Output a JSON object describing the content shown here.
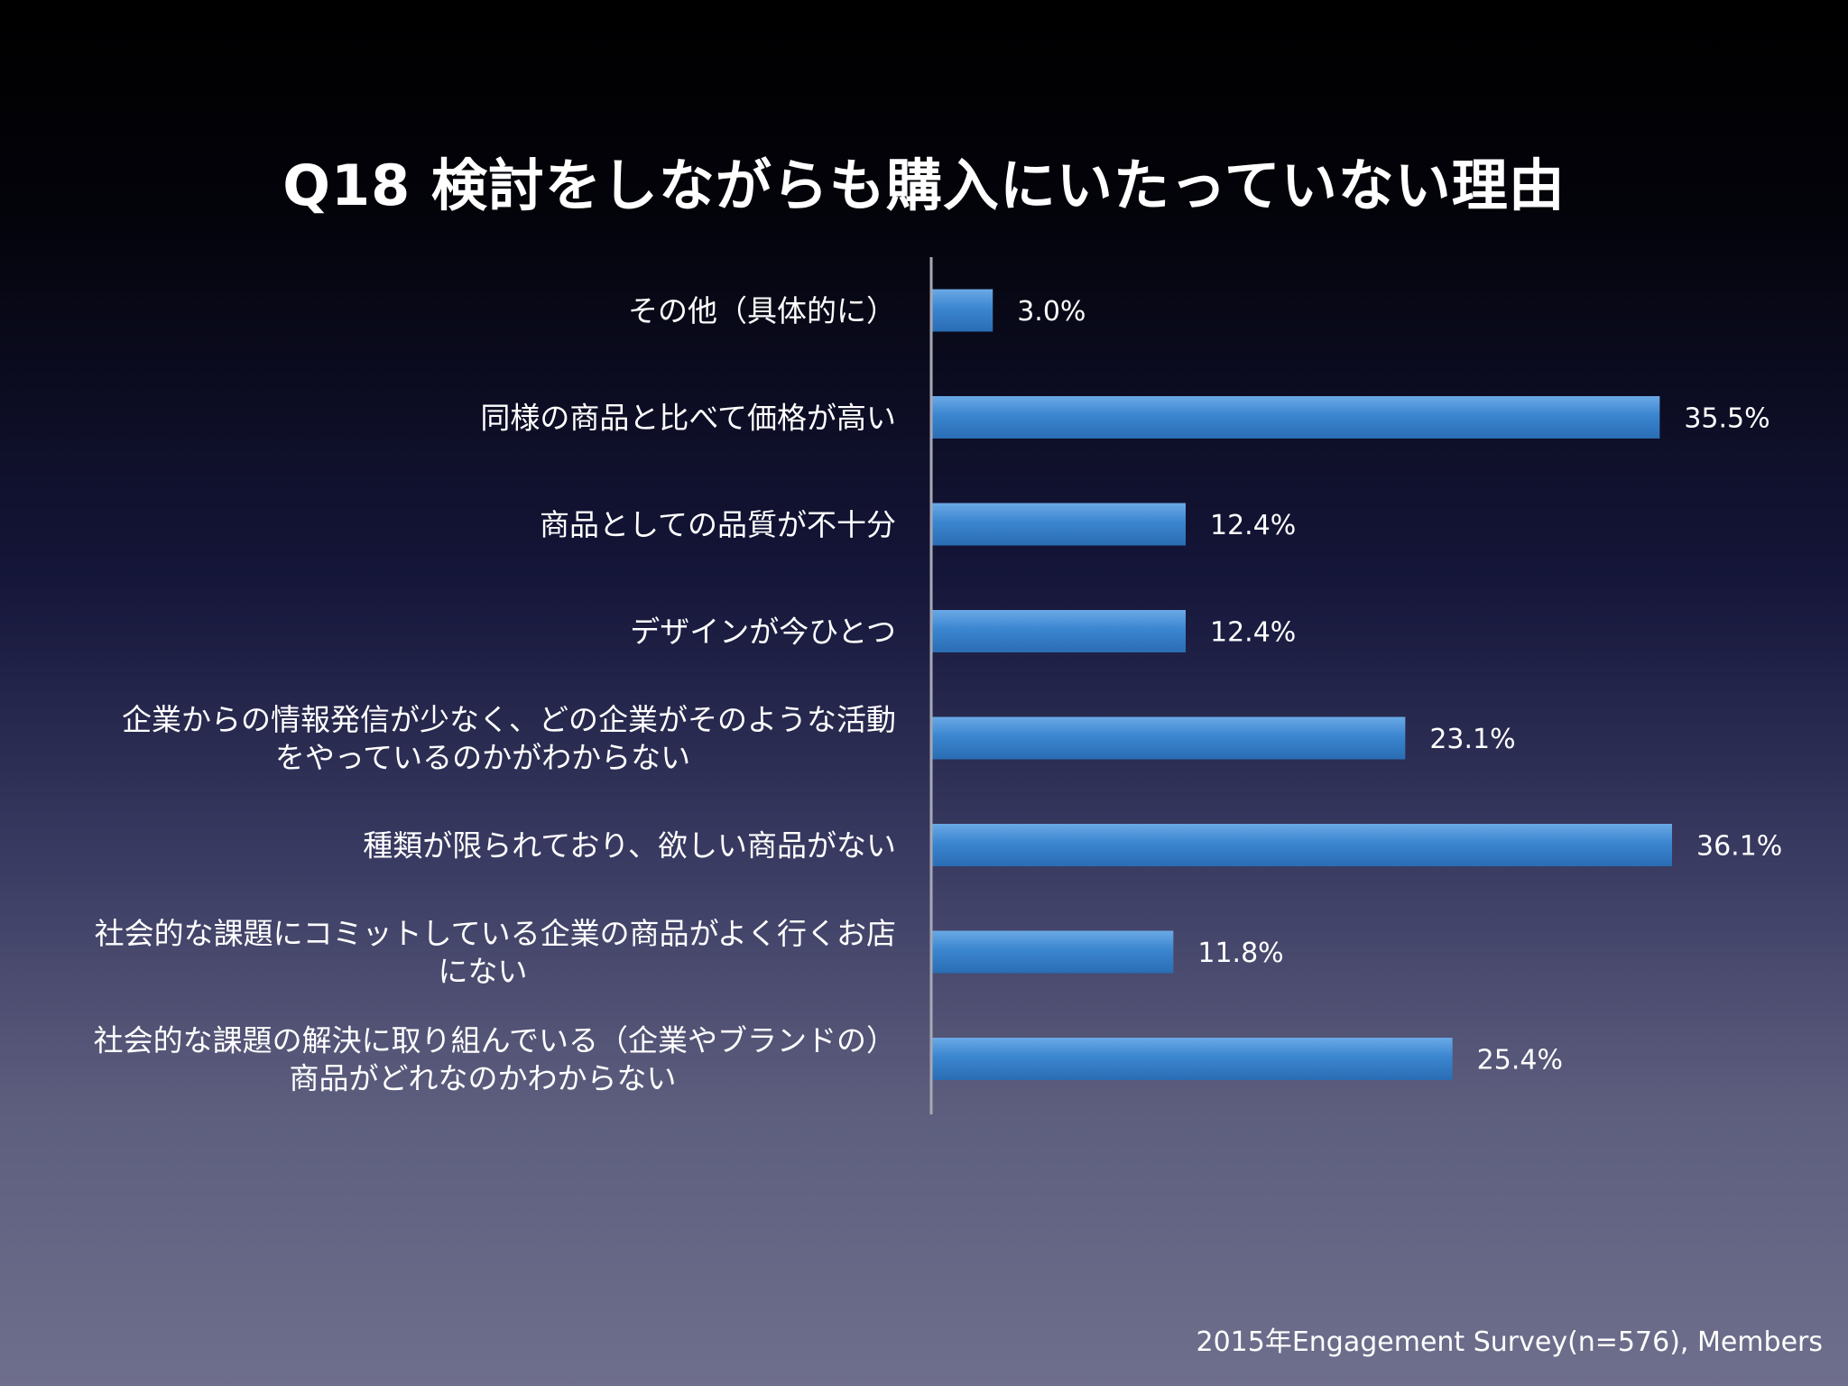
{
  "chart_data": {
    "type": "bar",
    "orientation": "horizontal",
    "title": "Q18 検討をしながらも購入にいたっていない理由",
    "categories": [
      [
        "その他（具体的に）"
      ],
      [
        "同様の商品と比べて価格が高い"
      ],
      [
        "商品としての品質が不十分"
      ],
      [
        "デザインが今ひとつ"
      ],
      [
        "企業からの情報発信が少なく、どの企業がそのような活動",
        "をやっているのかがわからない"
      ],
      [
        "種類が限られており、欲しい商品がない"
      ],
      [
        "社会的な課題にコミットしている企業の商品がよく行くお店",
        "にない"
      ],
      [
        "社会的な課題の解決に取り組んでいる（企業やブランドの）",
        "商品がどれなのかわからない"
      ]
    ],
    "values": [
      3.0,
      35.5,
      12.4,
      12.4,
      23.1,
      36.1,
      11.8,
      25.4
    ],
    "value_labels": [
      "3.0%",
      "35.5%",
      "12.4%",
      "12.4%",
      "23.1%",
      "36.1%",
      "11.8%",
      "25.4%"
    ],
    "xlim": [
      0,
      40
    ],
    "grid": false,
    "legend": "none",
    "bar_color": "#3b86d0",
    "axis_color": "#a8a8b4"
  },
  "source_note": "2015年Engagement Survey(n=576), Members"
}
